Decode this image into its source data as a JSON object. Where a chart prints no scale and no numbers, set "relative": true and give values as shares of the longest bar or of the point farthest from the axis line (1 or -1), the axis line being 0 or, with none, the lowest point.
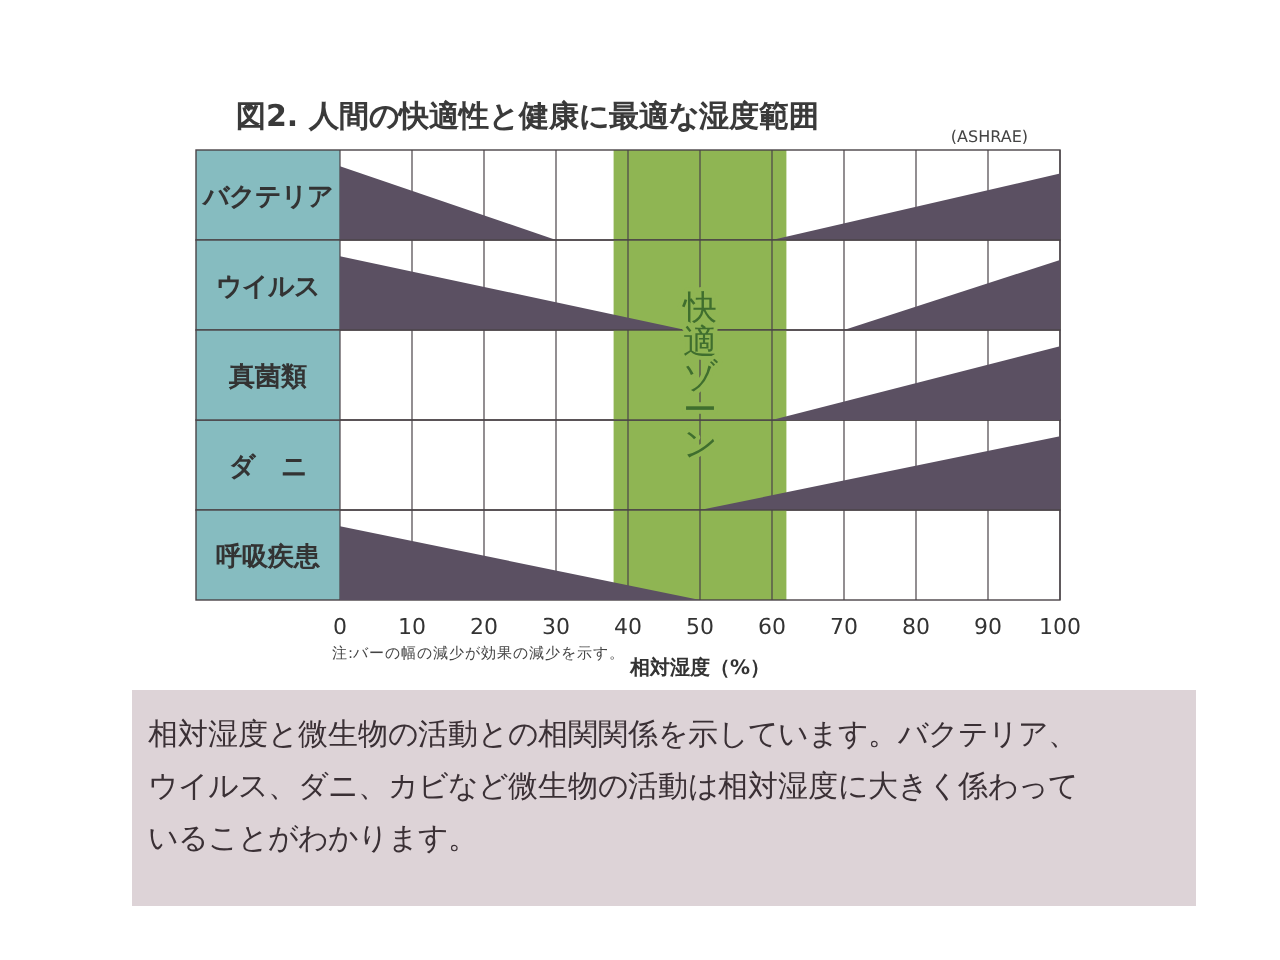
{
  "chart_data": [
    {
      "type": "area",
      "title": "図2. 人間の快適性と健康に最適な湿度範囲",
      "ylabel": "バクテリア",
      "relative": true,
      "series": [
        {
          "color": "#5b5062",
          "x": [
            0,
            30
          ],
          "values": [
            1,
            0
          ]
        },
        {
          "color": "#5b5062",
          "x": [
            60,
            100
          ],
          "values": [
            0,
            0.9
          ]
        }
      ],
      "xlim": [
        0,
        100
      ],
      "xticks": [
        0,
        10,
        20,
        30,
        40,
        50,
        60,
        70,
        80,
        90,
        100
      ],
      "grid": "x",
      "tick_labels": false,
      "bands": [
        {
          "axis": "x",
          "from": 38,
          "to": 62,
          "color": "#8fb553"
        }
      ],
      "annotations": [
        "(ASHRAE)"
      ]
    },
    {
      "type": "area",
      "ylabel": "ウイルス",
      "relative": true,
      "series": [
        {
          "color": "#5b5062",
          "x": [
            0,
            48
          ],
          "values": [
            1,
            0
          ]
        },
        {
          "color": "#5b5062",
          "x": [
            70,
            100
          ],
          "values": [
            0,
            0.95
          ]
        }
      ],
      "xlim": [
        0,
        100
      ],
      "xticks": [
        0,
        10,
        20,
        30,
        40,
        50,
        60,
        70,
        80,
        90,
        100
      ],
      "grid": "x",
      "tick_labels": false,
      "bands": [
        {
          "axis": "x",
          "from": 38,
          "to": 62,
          "color": "#8fb553"
        }
      ]
    },
    {
      "type": "area",
      "ylabel": "真菌類",
      "relative": true,
      "series": [
        {
          "color": "#5b5062",
          "x": [
            60,
            100
          ],
          "values": [
            0,
            1
          ]
        }
      ],
      "xlim": [
        0,
        100
      ],
      "xticks": [
        0,
        10,
        20,
        30,
        40,
        50,
        60,
        70,
        80,
        90,
        100
      ],
      "grid": "x",
      "tick_labels": false,
      "bands": [
        {
          "axis": "x",
          "from": 38,
          "to": 62,
          "color": "#8fb553",
          "label": "快適ゾーン"
        }
      ]
    },
    {
      "type": "area",
      "ylabel": "ダ　ニ",
      "relative": true,
      "series": [
        {
          "color": "#5b5062",
          "x": [
            50,
            100
          ],
          "values": [
            0,
            1
          ]
        }
      ],
      "xlim": [
        0,
        100
      ],
      "xticks": [
        0,
        10,
        20,
        30,
        40,
        50,
        60,
        70,
        80,
        90,
        100
      ],
      "grid": "x",
      "tick_labels": false,
      "bands": [
        {
          "axis": "x",
          "from": 38,
          "to": 62,
          "color": "#8fb553"
        }
      ]
    },
    {
      "type": "area",
      "ylabel": "呼吸疾患",
      "xlabel": "相対湿度（%）",
      "relative": true,
      "series": [
        {
          "color": "#5b5062",
          "x": [
            0,
            50
          ],
          "values": [
            1,
            0
          ]
        }
      ],
      "xlim": [
        0,
        100
      ],
      "xticks": [
        0,
        10,
        20,
        30,
        40,
        50,
        60,
        70,
        80,
        90,
        100
      ],
      "grid": "x",
      "tick_labels": "x",
      "bands": [
        {
          "axis": "x",
          "from": 38,
          "to": 62,
          "color": "#8fb553"
        }
      ],
      "annotations": [
        "注:バーの幅の減少が効果の減少を示す。",
        "相対湿度と微生物の活動との相関関係を示しています。バクテリア、ウイルス、ダニ、カビなど微生物の活動は相対湿度に大きく係わっていることがわかります。"
      ]
    }
  ]
}
